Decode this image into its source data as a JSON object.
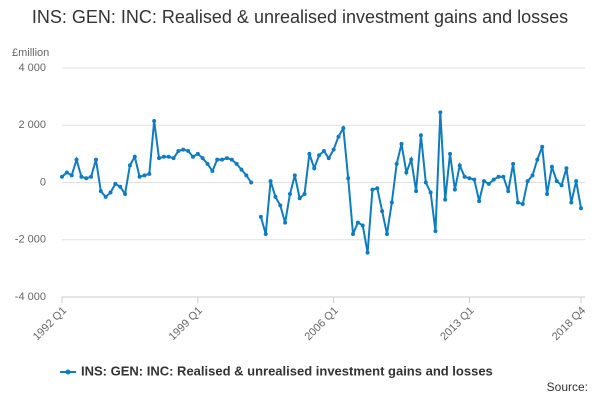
{
  "chart_data": {
    "type": "line",
    "title": "INS: GEN: INC: Realised & unrealised investment gains and losses",
    "y_unit_label": "£million",
    "source": "Source:",
    "categories": [
      "1992 Q1",
      null,
      null,
      null,
      null,
      null,
      null,
      null,
      null,
      null,
      null,
      null,
      null,
      null,
      null,
      null,
      null,
      null,
      null,
      null,
      null,
      null,
      null,
      null,
      null,
      null,
      null,
      null,
      "1999 Q1",
      null,
      null,
      null,
      null,
      null,
      null,
      null,
      null,
      null,
      null,
      null,
      null,
      null,
      null,
      null,
      null,
      null,
      null,
      null,
      null,
      null,
      null,
      null,
      null,
      null,
      null,
      null,
      "2006 Q1",
      null,
      null,
      null,
      null,
      null,
      null,
      null,
      null,
      null,
      null,
      null,
      null,
      null,
      null,
      null,
      null,
      null,
      null,
      null,
      null,
      null,
      null,
      null,
      null,
      null,
      null,
      null,
      "2013 Q1",
      null,
      null,
      null,
      null,
      null,
      null,
      null,
      null,
      null,
      null,
      null,
      null,
      null,
      null,
      null,
      null,
      null,
      null,
      null,
      null,
      null,
      null,
      "2018 Q4"
    ],
    "series": [
      {
        "name": "INS: GEN: INC: Realised & unrealised investment gains and losses",
        "color": "#0f7cbf",
        "values": [
          200,
          350,
          250,
          800,
          200,
          150,
          200,
          800,
          -300,
          -500,
          -350,
          -50,
          -150,
          -400,
          600,
          900,
          200,
          250,
          300,
          2150,
          850,
          900,
          900,
          850,
          1100,
          1150,
          1100,
          900,
          1000,
          850,
          650,
          400,
          800,
          800,
          850,
          800,
          650,
          450,
          250,
          0,
          null,
          -1200,
          -1800,
          50,
          -500,
          -800,
          -1400,
          -400,
          250,
          -550,
          -400,
          1000,
          500,
          950,
          1100,
          850,
          1150,
          1600,
          1900,
          150,
          -1800,
          -1400,
          -1500,
          -2450,
          -250,
          -200,
          -1000,
          -1800,
          -700,
          650,
          1350,
          350,
          800,
          -300,
          1650,
          0,
          -350,
          -1700,
          2450,
          -600,
          1000,
          -250,
          600,
          200,
          150,
          100,
          -650,
          50,
          -50,
          100,
          200,
          200,
          -300,
          650,
          -700,
          -750,
          50,
          250,
          800,
          1250,
          -400,
          550,
          50,
          -100,
          500,
          -700,
          50,
          -900
        ]
      }
    ],
    "ylim": [
      -4000,
      4000
    ],
    "yticks": [
      {
        "value": -4000,
        "label": "-4 000"
      },
      {
        "value": -2000,
        "label": "-2 000"
      },
      0,
      {
        "value": 2000,
        "label": "2 000"
      },
      {
        "value": 4000,
        "label": "4 000"
      }
    ],
    "grid": true
  }
}
